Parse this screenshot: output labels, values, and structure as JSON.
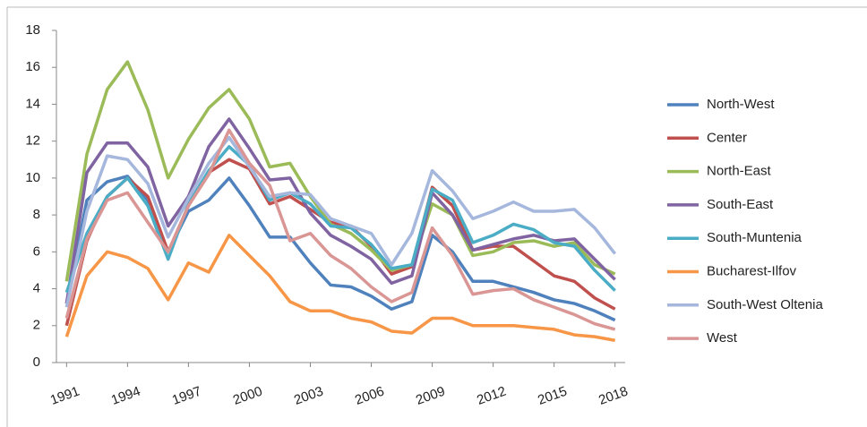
{
  "chart_data": {
    "type": "line",
    "x": [
      1991,
      1992,
      1993,
      1994,
      1995,
      1996,
      1997,
      1998,
      1999,
      2000,
      2001,
      2002,
      2003,
      2004,
      2005,
      2006,
      2007,
      2008,
      2009,
      2010,
      2011,
      2012,
      2013,
      2014,
      2015,
      2016,
      2017,
      2018
    ],
    "xlim": [
      1990.5,
      2018.5
    ],
    "xticks": [
      1991,
      1994,
      1997,
      2000,
      2003,
      2006,
      2009,
      2012,
      2015,
      2018
    ],
    "ylim": [
      0,
      18
    ],
    "yticks": [
      0,
      2,
      4,
      6,
      8,
      10,
      12,
      14,
      16,
      18
    ],
    "grid": false,
    "legend": "right",
    "series": [
      {
        "name": "North-West",
        "color": "#4f81bd",
        "values": [
          3.2,
          8.8,
          9.8,
          10.1,
          8.8,
          6.0,
          8.2,
          8.8,
          10.0,
          8.5,
          6.8,
          6.8,
          5.4,
          4.2,
          4.1,
          3.6,
          2.9,
          3.3,
          6.9,
          6.0,
          4.4,
          4.4,
          4.1,
          3.8,
          3.4,
          3.2,
          2.8,
          2.3
        ]
      },
      {
        "name": "Center",
        "color": "#c0504d",
        "values": [
          2.0,
          6.6,
          9.0,
          10.0,
          9.0,
          6.0,
          8.5,
          10.3,
          11.0,
          10.5,
          8.6,
          9.0,
          8.3,
          7.6,
          7.4,
          6.3,
          4.8,
          5.2,
          9.5,
          8.5,
          6.1,
          6.3,
          6.3,
          5.5,
          4.7,
          4.4,
          3.5,
          2.9
        ]
      },
      {
        "name": "North-East",
        "color": "#9bbb59",
        "values": [
          4.4,
          11.3,
          14.8,
          16.3,
          13.7,
          10.0,
          12.1,
          13.8,
          14.8,
          13.2,
          10.6,
          10.8,
          9.0,
          7.5,
          7.0,
          6.1,
          5.0,
          5.3,
          8.6,
          8.0,
          5.8,
          6.0,
          6.5,
          6.6,
          6.3,
          6.5,
          5.3,
          4.8
        ]
      },
      {
        "name": "South-East",
        "color": "#8064a2",
        "values": [
          3.2,
          10.3,
          11.9,
          11.9,
          10.6,
          7.4,
          9.0,
          11.7,
          13.2,
          11.6,
          9.9,
          10.0,
          8.1,
          6.9,
          6.3,
          5.6,
          4.3,
          4.7,
          9.2,
          8.0,
          6.1,
          6.4,
          6.7,
          6.9,
          6.6,
          6.7,
          5.6,
          4.5
        ]
      },
      {
        "name": "South-Muntenia",
        "color": "#4bacc6",
        "values": [
          3.8,
          7.0,
          9.0,
          10.0,
          8.5,
          5.6,
          8.6,
          10.4,
          11.7,
          10.7,
          8.8,
          9.2,
          8.6,
          7.4,
          7.3,
          6.4,
          5.1,
          5.3,
          9.4,
          8.8,
          6.5,
          6.9,
          7.5,
          7.2,
          6.5,
          6.3,
          5.0,
          3.9
        ]
      },
      {
        "name": "Bucharest-Ilfov",
        "color": "#f79646",
        "values": [
          1.4,
          4.7,
          6.0,
          5.7,
          5.1,
          3.4,
          5.4,
          4.9,
          6.9,
          5.8,
          4.7,
          3.3,
          2.8,
          2.8,
          2.4,
          2.2,
          1.7,
          1.6,
          2.4,
          2.4,
          2.0,
          2.0,
          2.0,
          1.9,
          1.8,
          1.5,
          1.4,
          1.2
        ]
      },
      {
        "name": "South-West Oltenia",
        "color": "#a5b7dc",
        "values": [
          3.0,
          8.2,
          11.2,
          11.0,
          9.7,
          6.8,
          8.9,
          10.8,
          12.2,
          10.6,
          9.0,
          9.2,
          9.1,
          7.8,
          7.4,
          7.0,
          5.3,
          7.0,
          10.4,
          9.3,
          7.8,
          8.2,
          8.7,
          8.2,
          8.2,
          8.3,
          7.3,
          5.9
        ]
      },
      {
        "name": "West",
        "color": "#d99694",
        "values": [
          2.4,
          6.7,
          8.8,
          9.2,
          7.6,
          6.0,
          8.5,
          10.2,
          12.6,
          10.8,
          9.6,
          6.6,
          7.0,
          5.8,
          5.1,
          4.1,
          3.3,
          3.8,
          7.3,
          5.8,
          3.7,
          3.9,
          4.0,
          3.4,
          3.0,
          2.6,
          2.1,
          1.8
        ]
      }
    ]
  }
}
